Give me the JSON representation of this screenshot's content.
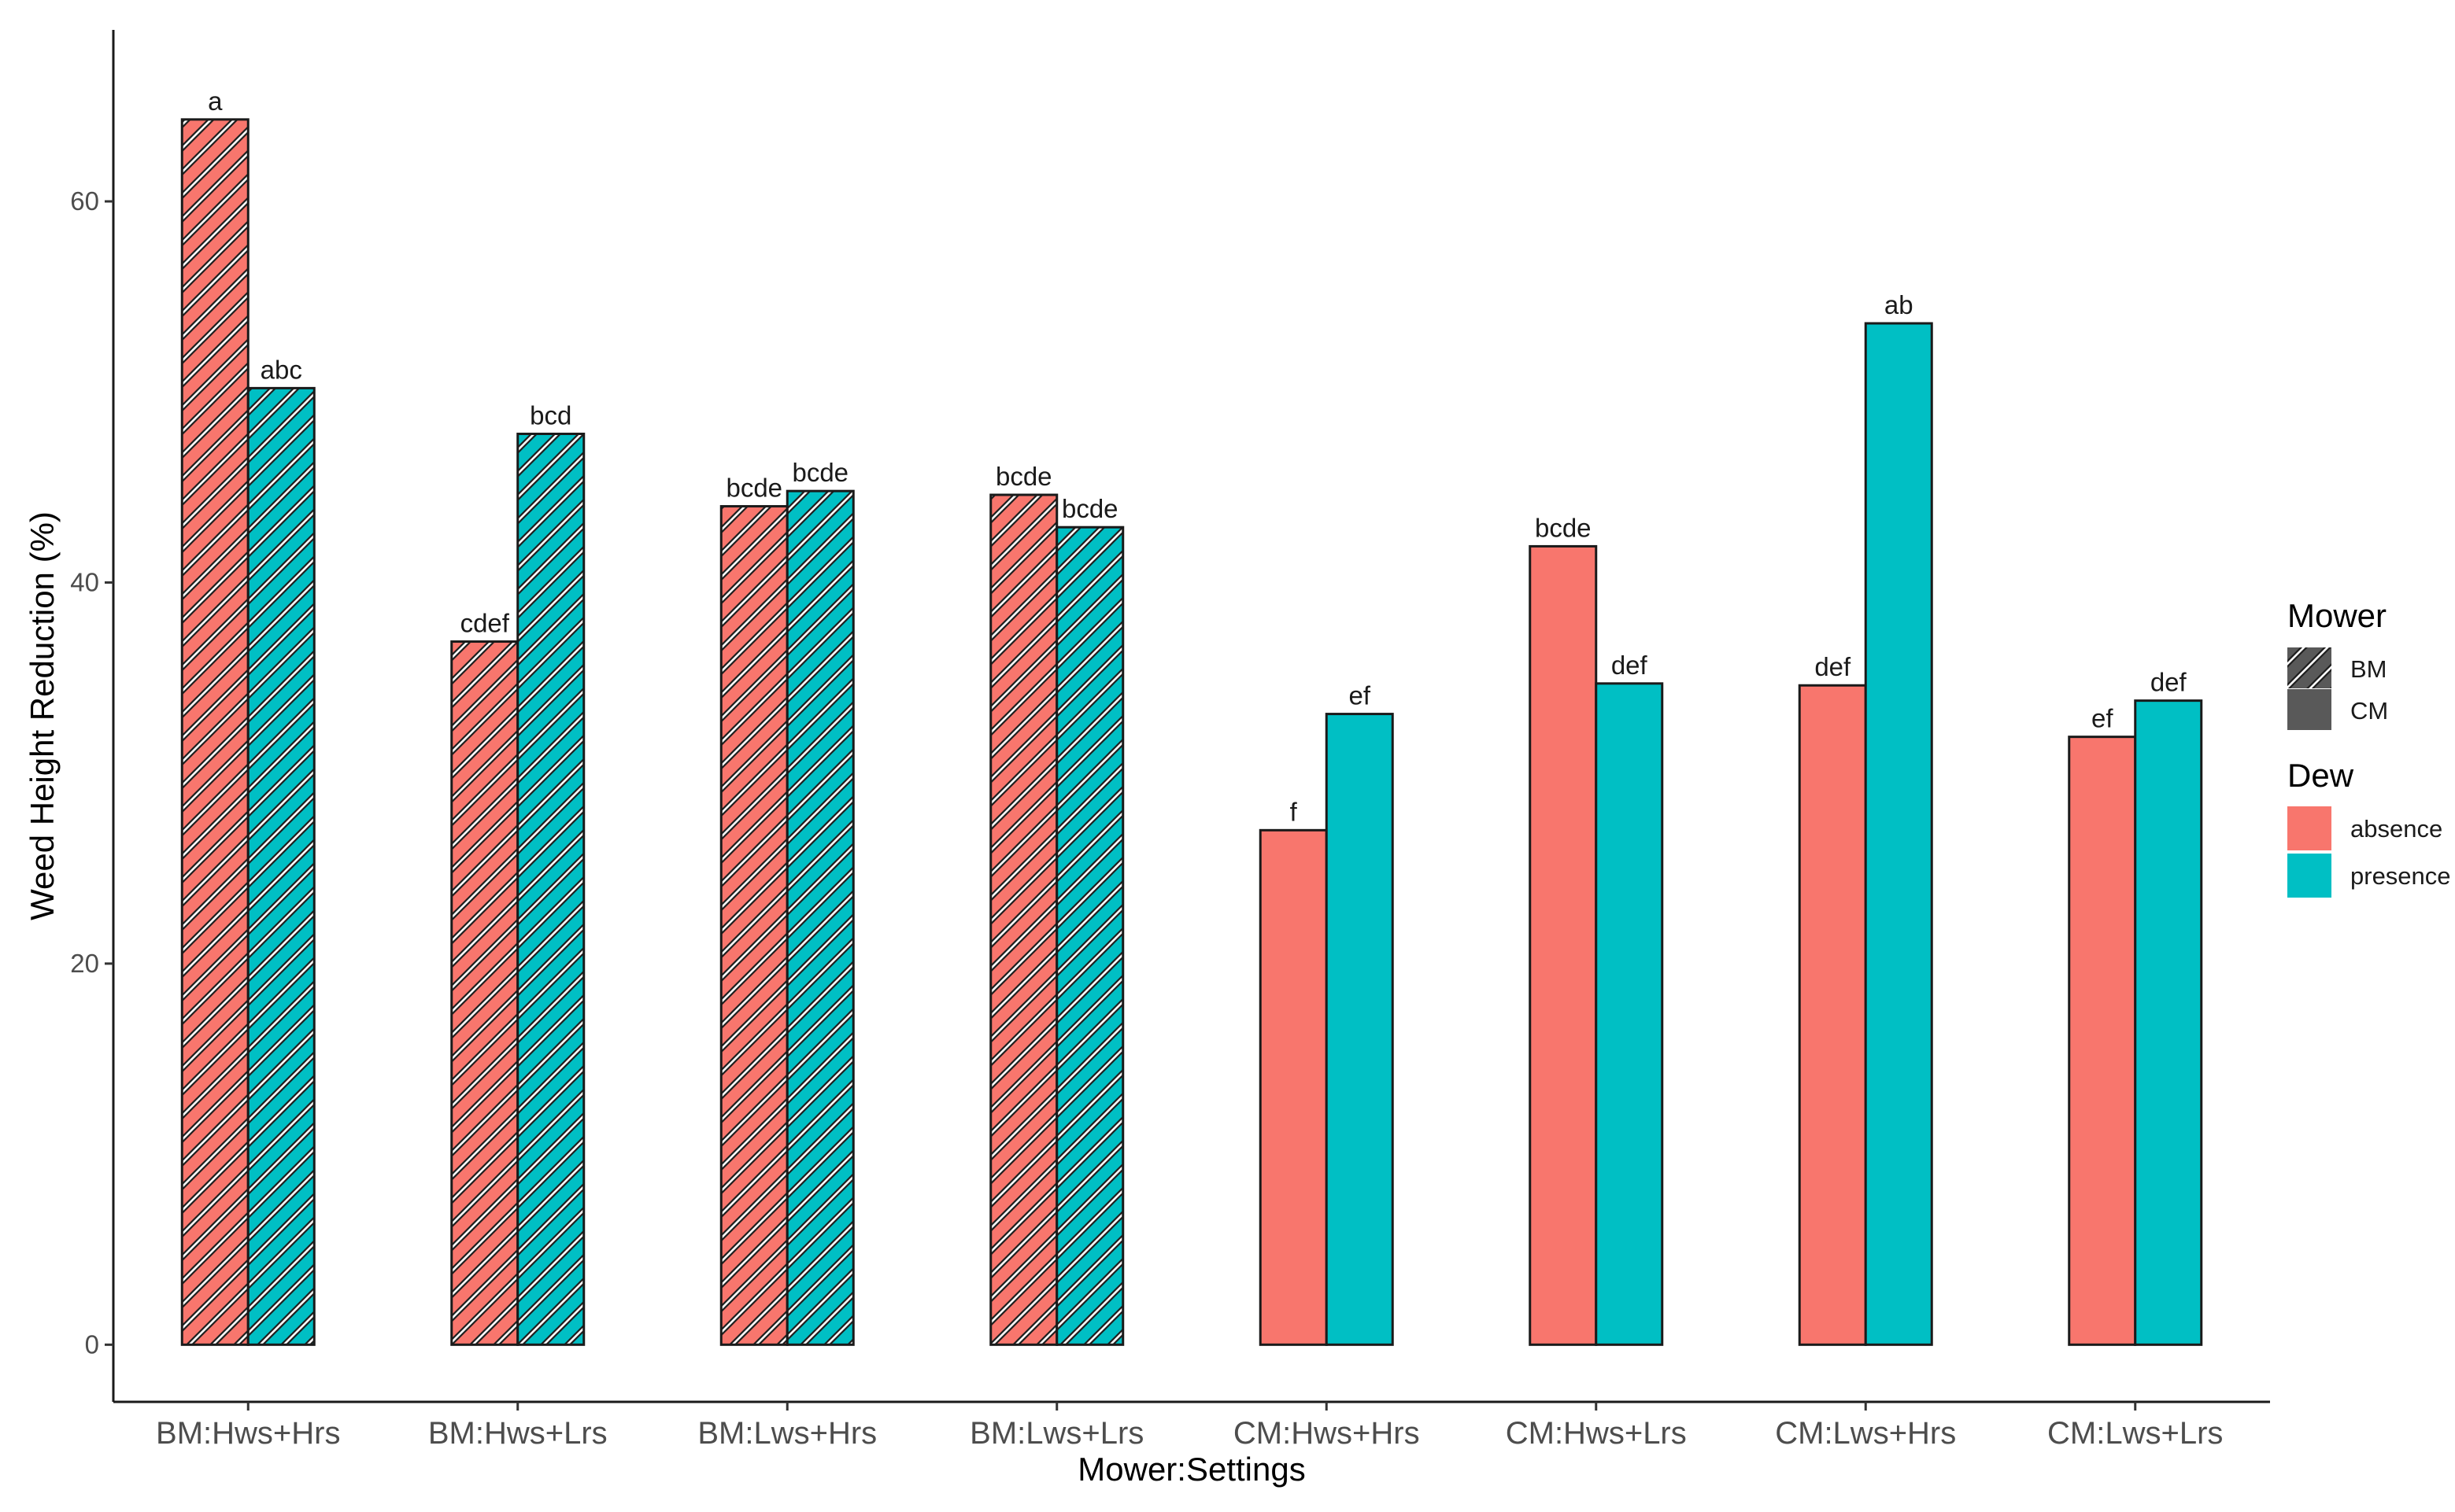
{
  "chart_data": {
    "type": "bar",
    "xlabel": "Mower:Settings",
    "ylabel": "Weed Height Reduction (%)",
    "ylim": [
      -3,
      69
    ],
    "yticks": [
      0,
      20,
      40,
      60
    ],
    "grid": false,
    "categories": [
      "BM:Hws+Hrs",
      "BM:Hws+Lrs",
      "BM:Lws+Hrs",
      "BM:Lws+Lrs",
      "CM:Hws+Hrs",
      "CM:Hws+Lrs",
      "CM:Lws+Hrs",
      "CM:Lws+Lrs"
    ],
    "mower": [
      "BM",
      "BM",
      "BM",
      "BM",
      "CM",
      "CM",
      "CM",
      "CM"
    ],
    "series": [
      {
        "name": "absence",
        "color": "#F8766D",
        "values": [
          64.3,
          36.9,
          44.0,
          44.6,
          27.0,
          41.9,
          34.6,
          31.9
        ],
        "letters": [
          "a",
          "cdef",
          "bcde",
          "bcde",
          "f",
          "bcde",
          "def",
          "ef"
        ]
      },
      {
        "name": "presence",
        "color": "#00BFC4",
        "values": [
          50.2,
          47.8,
          44.8,
          42.9,
          33.1,
          34.7,
          53.6,
          33.8
        ],
        "letters": [
          "abc",
          "bcd",
          "bcde",
          "bcde",
          "ef",
          "def",
          "ab",
          "def"
        ]
      }
    ],
    "legend": {
      "position": "right",
      "mower_title": "Mower",
      "mower_items": [
        "BM",
        "CM"
      ],
      "dew_title": "Dew",
      "dew_items": [
        "absence",
        "presence"
      ]
    }
  }
}
